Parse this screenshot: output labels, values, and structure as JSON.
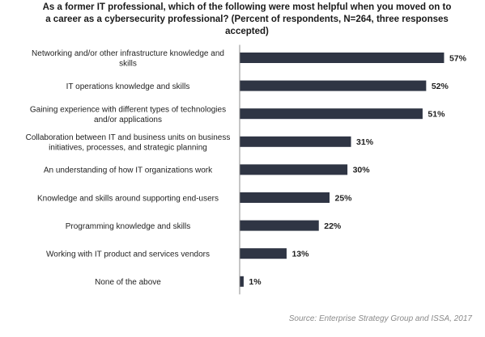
{
  "chart_data": {
    "type": "bar",
    "orientation": "horizontal",
    "title": "As a former IT professional, which of the following were most helpful when you moved on to a career as a cybersecurity professional? (Percent of respondents, N=264, three responses accepted)",
    "title_lines": [
      "As a former IT professional, which of the following were most helpful when you moved on to",
      "a career as a cybersecurity professional? (Percent of respondents, N=264, three responses",
      "accepted)"
    ],
    "categories": [
      [
        "Networking and/or other infrastructure knowledge and",
        "skills"
      ],
      [
        "IT operations knowledge and skills"
      ],
      [
        "Gaining experience with different types of technologies",
        "and/or applications"
      ],
      [
        "Collaboration between IT and business units on business",
        "initiatives, processes, and strategic planning"
      ],
      [
        "An understanding of how IT organizations work"
      ],
      [
        "Knowledge and skills around supporting end-users"
      ],
      [
        "Programming knowledge and skills"
      ],
      [
        "Working with IT product and services vendors"
      ],
      [
        "None of the above"
      ]
    ],
    "values": [
      57,
      52,
      51,
      31,
      30,
      25,
      22,
      13,
      1
    ],
    "value_labels": [
      "57%",
      "52%",
      "51%",
      "31%",
      "30%",
      "25%",
      "22%",
      "13%",
      "1%"
    ],
    "bar_color": "#2f3544",
    "source": "Source: Enterprise Strategy Group and ISSA, 2017",
    "xlim": [
      0,
      60
    ],
    "grid": false,
    "legend": "none"
  }
}
